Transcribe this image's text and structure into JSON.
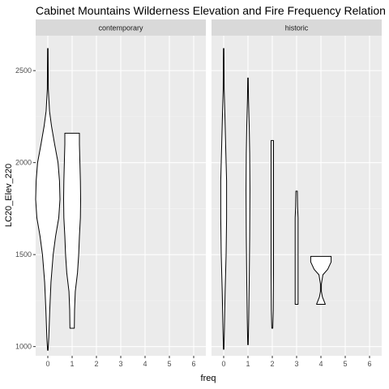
{
  "chart_data": {
    "type": "violin",
    "title": "Cabinet Mountains Wilderness Elevation and Fire Frequency Relation",
    "xlabel": "freq",
    "ylabel": "LC20_Elev_220",
    "x_ticks": [
      "0",
      "1",
      "2",
      "3",
      "4",
      "5",
      "6"
    ],
    "y_ticks": [
      "1000",
      "1500",
      "2000",
      "2500"
    ],
    "xlim": [
      -0.5,
      6.5
    ],
    "ylim": [
      950,
      2690
    ],
    "grid": true,
    "panels": [
      {
        "strip": "contemporary",
        "violins": [
          {
            "freq": 0,
            "min": 980,
            "max": 2620,
            "profile": [
              [
                980,
                0.01
              ],
              [
                1050,
                0.04
              ],
              [
                1200,
                0.08
              ],
              [
                1350,
                0.13
              ],
              [
                1500,
                0.22
              ],
              [
                1600,
                0.32
              ],
              [
                1700,
                0.45
              ],
              [
                1800,
                0.5
              ],
              [
                1900,
                0.48
              ],
              [
                2000,
                0.42
              ],
              [
                2100,
                0.28
              ],
              [
                2200,
                0.15
              ],
              [
                2280,
                0.07
              ],
              [
                2400,
                0.02
              ],
              [
                2620,
                0.01
              ]
            ]
          },
          {
            "freq": 1,
            "min": 1100,
            "max": 2160,
            "profile": [
              [
                1100,
                0.09
              ],
              [
                1200,
                0.1
              ],
              [
                1300,
                0.13
              ],
              [
                1400,
                0.22
              ],
              [
                1500,
                0.27
              ],
              [
                1600,
                0.3
              ],
              [
                1700,
                0.34
              ],
              [
                1800,
                0.35
              ],
              [
                1900,
                0.34
              ],
              [
                2000,
                0.32
              ],
              [
                2100,
                0.3
              ],
              [
                2140,
                0.3
              ],
              [
                2160,
                0.3
              ]
            ]
          }
        ]
      },
      {
        "strip": "historic",
        "violins": [
          {
            "freq": 0,
            "min": 985,
            "max": 2620,
            "profile": [
              [
                985,
                0.01
              ],
              [
                1100,
                0.03
              ],
              [
                1300,
                0.06
              ],
              [
                1500,
                0.1
              ],
              [
                1700,
                0.12
              ],
              [
                1900,
                0.12
              ],
              [
                2100,
                0.08
              ],
              [
                2260,
                0.05
              ],
              [
                2400,
                0.02
              ],
              [
                2620,
                0.01
              ]
            ]
          },
          {
            "freq": 1,
            "min": 1010,
            "max": 2460,
            "profile": [
              [
                1010,
                0.01
              ],
              [
                1150,
                0.03
              ],
              [
                1350,
                0.05
              ],
              [
                1600,
                0.07
              ],
              [
                1850,
                0.08
              ],
              [
                2050,
                0.07
              ],
              [
                2200,
                0.05
              ],
              [
                2350,
                0.02
              ],
              [
                2460,
                0.01
              ]
            ]
          },
          {
            "freq": 2,
            "min": 1100,
            "max": 2120,
            "profile": [
              [
                1100,
                0.02
              ],
              [
                1200,
                0.04
              ],
              [
                1400,
                0.05
              ],
              [
                1600,
                0.05
              ],
              [
                1800,
                0.05
              ],
              [
                2000,
                0.05
              ],
              [
                2120,
                0.05
              ]
            ]
          },
          {
            "freq": 3,
            "min": 1230,
            "max": 1845,
            "profile": [
              [
                1230,
                0.06
              ],
              [
                1300,
                0.06
              ],
              [
                1500,
                0.06
              ],
              [
                1700,
                0.06
              ],
              [
                1760,
                0.04
              ],
              [
                1845,
                0.03
              ]
            ]
          },
          {
            "freq": 4,
            "min": 1230,
            "max": 1490,
            "profile": [
              [
                1230,
                0.18
              ],
              [
                1270,
                0.06
              ],
              [
                1300,
                0.02
              ],
              [
                1340,
                0.02
              ],
              [
                1390,
                0.08
              ],
              [
                1420,
                0.28
              ],
              [
                1460,
                0.42
              ],
              [
                1490,
                0.42
              ]
            ]
          }
        ]
      }
    ]
  }
}
